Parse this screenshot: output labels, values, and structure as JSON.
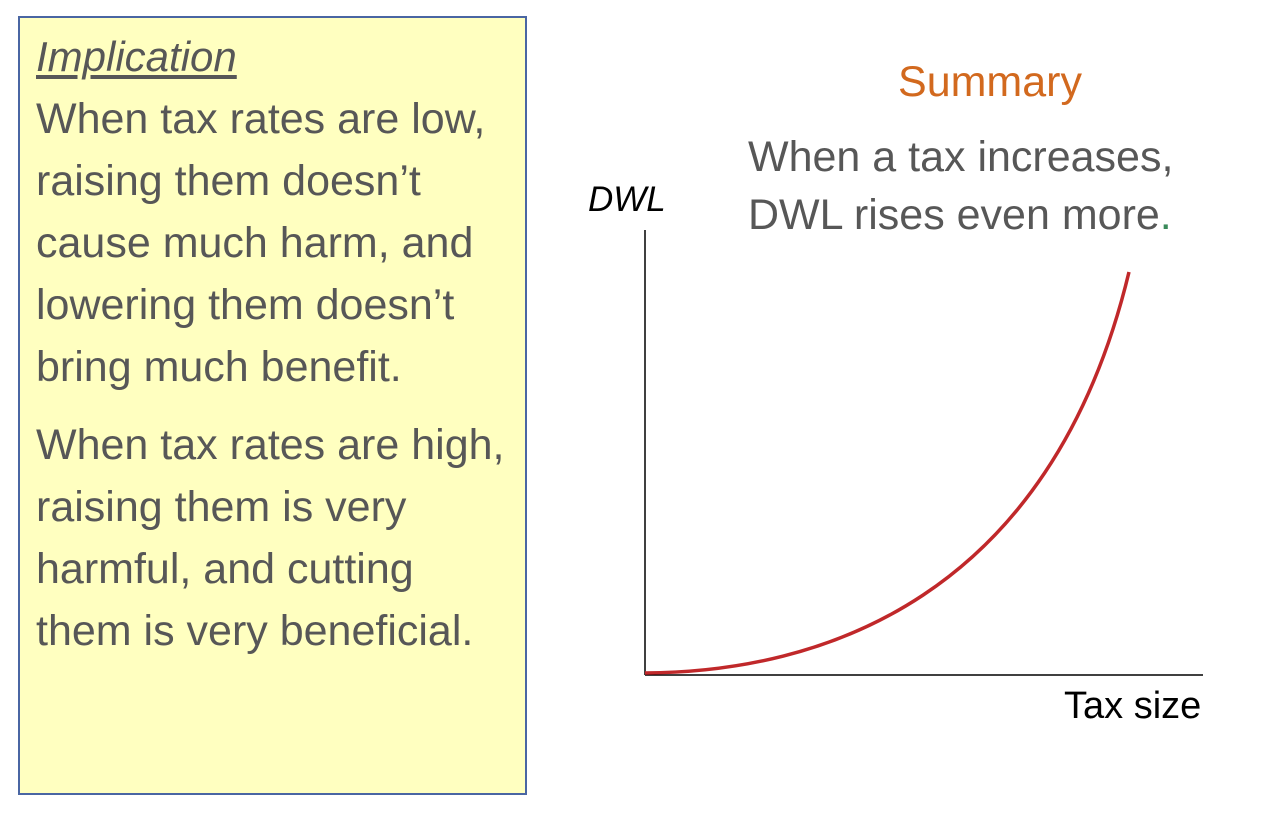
{
  "implication_box": {
    "heading": "Implication",
    "paragraph_1": "When tax rates are low, raising them doesn’t cause much harm, and lowering them doesn’t bring much benefit.",
    "paragraph_2": "When tax rates are high, raising them is very harmful, and cutting them is very beneficial."
  },
  "summary": {
    "title": "Summary",
    "body": "When a tax increases, DWL rises even more",
    "end_punct": "."
  },
  "graph": {
    "y_axis_label": "DWL",
    "x_axis_label": "Tax size",
    "curve_shape": "convex-increasing",
    "curve_color": "#c0282a",
    "axis_color": "#000000"
  }
}
